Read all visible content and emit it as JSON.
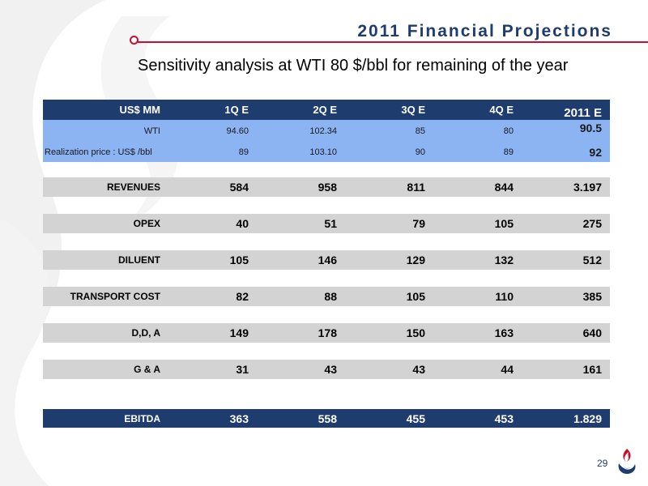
{
  "slide": {
    "title": "2011 Financial Projections",
    "subtitle": "Sensitivity analysis at WTI 80 $/bbl for remaining of the year",
    "page_number": "29"
  },
  "colors": {
    "navy": "#1f3c6e",
    "accent_red": "#c8102e",
    "light_blue": "#8cb3f2",
    "gray_row": "#d3d3d3"
  },
  "table": {
    "headers": [
      "US$ MM",
      "1Q E",
      "2Q E",
      "3Q E",
      "4Q E",
      "2011 E"
    ],
    "price_rows": [
      {
        "label": "WTI",
        "values": [
          "94.60",
          "102.34",
          "85",
          "80",
          "90.5"
        ]
      },
      {
        "label": "Realization price :  US$ /bbl",
        "values": [
          "89",
          "103.10",
          "90",
          "89",
          "92"
        ]
      }
    ],
    "rows": [
      {
        "label": "REVENUES",
        "values": [
          "584",
          "958",
          "811",
          "844",
          "3.197"
        ]
      },
      {
        "label": "OPEX",
        "values": [
          "40",
          "51",
          "79",
          "105",
          "275"
        ]
      },
      {
        "label": "DILUENT",
        "values": [
          "105",
          "146",
          "129",
          "132",
          "512"
        ]
      },
      {
        "label": "TRANSPORT COST",
        "values": [
          "82",
          "88",
          "105",
          "110",
          "385"
        ]
      },
      {
        "label": "D,D, A",
        "values": [
          "149",
          "178",
          "150",
          "163",
          "640"
        ]
      },
      {
        "label": "G & A",
        "values": [
          "31",
          "43",
          "43",
          "44",
          "161"
        ]
      }
    ],
    "ebitda": {
      "label": "EBITDA",
      "values": [
        "363",
        "558",
        "455",
        "453",
        "1.829"
      ]
    }
  },
  "icons": {
    "background": "swoosh-watermark",
    "title_marker": "circle-bullet-icon",
    "logo": "flame-logo-icon"
  }
}
